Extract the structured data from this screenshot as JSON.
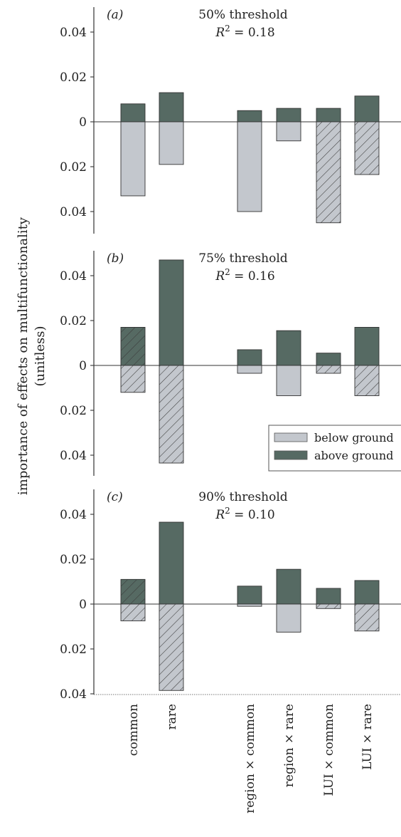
{
  "chart_data": {
    "type": "bar",
    "ylabel_line1": "importance of effects on multifunctionality",
    "ylabel_line2": "(unitless)",
    "categories": [
      "common",
      "rare",
      "region × common",
      "region × rare",
      "LUI × common",
      "LUI × rare"
    ],
    "legend": {
      "placement": "right",
      "below_label": "below ground",
      "above_label": "above ground",
      "below_color": "#c3c7cd",
      "above_color": "#566a63"
    },
    "panels": [
      {
        "letter": "(a)",
        "title": "50% threshold",
        "r2_prefix": "R",
        "r2_sup": "2",
        "r2_value": " = 0.18",
        "yticks": [
          "0.04",
          "0.02",
          "0",
          "0.02",
          "0.04"
        ],
        "above": [
          0.008,
          0.013,
          0.005,
          0.006,
          0.006,
          0.0115
        ],
        "below": [
          0.033,
          0.019,
          0.04,
          0.0085,
          0.045,
          0.0235
        ],
        "above_hatched": [
          false,
          false,
          false,
          false,
          false,
          false
        ],
        "below_hatched": [
          false,
          false,
          false,
          false,
          true,
          true
        ]
      },
      {
        "letter": "(b)",
        "title": "75% threshold",
        "r2_prefix": "R",
        "r2_sup": "2",
        "r2_value": " = 0.16",
        "yticks": [
          "0.04",
          "0.02",
          "0",
          "0.02",
          "0.04"
        ],
        "above": [
          0.017,
          0.047,
          0.007,
          0.0155,
          0.0055,
          0.017
        ],
        "below": [
          0.012,
          0.0435,
          0.0035,
          0.0135,
          0.0035,
          0.0135
        ],
        "above_hatched": [
          true,
          false,
          false,
          false,
          false,
          false
        ],
        "below_hatched": [
          true,
          true,
          false,
          false,
          true,
          true
        ]
      },
      {
        "letter": "(c)",
        "title": "90% threshold",
        "r2_prefix": "R",
        "r2_sup": "2",
        "r2_value": " = 0.10",
        "yticks": [
          "0.04",
          "0.02",
          "0",
          "0.02",
          "0.04"
        ],
        "above": [
          0.011,
          0.0365,
          0.008,
          0.0155,
          0.007,
          0.0105
        ],
        "below": [
          0.0075,
          0.0385,
          0.001,
          0.0125,
          0.002,
          0.012
        ],
        "above_hatched": [
          true,
          false,
          false,
          false,
          false,
          false
        ],
        "below_hatched": [
          true,
          true,
          false,
          false,
          true,
          true
        ]
      }
    ],
    "ylim": [
      -0.05,
      0.05
    ]
  }
}
